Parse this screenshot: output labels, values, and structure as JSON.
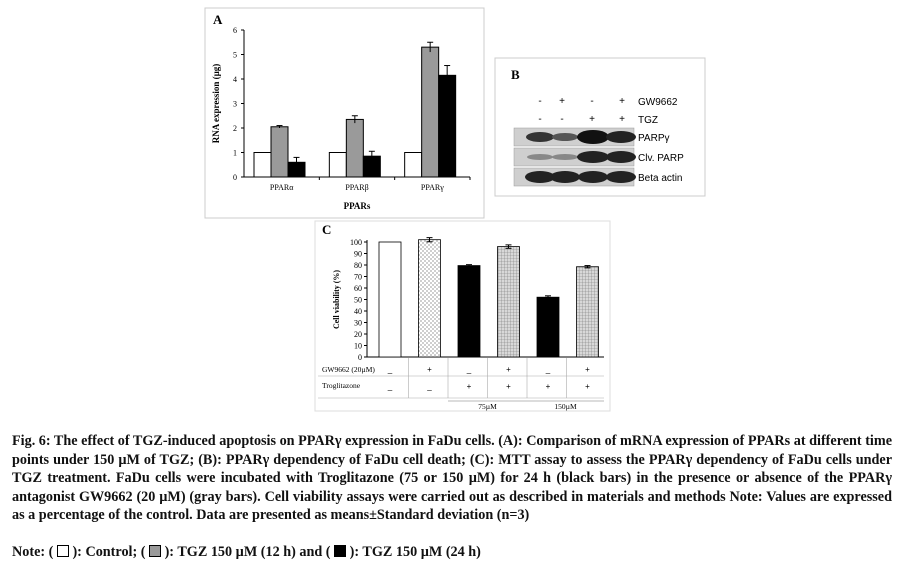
{
  "panel_labels": {
    "a": "A",
    "b": "B",
    "c": "C"
  },
  "chart_data": [
    {
      "type": "bar",
      "panel": "A",
      "title": "",
      "xlabel": "PPARs",
      "ylabel": "RNA expression (µg)",
      "ylim": [
        0,
        6
      ],
      "yticks": [
        "0",
        "1",
        "2",
        "3",
        "4",
        "5",
        "6"
      ],
      "categories": [
        "PPARα",
        "PPARβ",
        "PPARγ"
      ],
      "series": [
        {
          "name": "Control",
          "fill": "#ffffff",
          "values": [
            1.0,
            1.0,
            1.0
          ],
          "errors": [
            0,
            0,
            0
          ]
        },
        {
          "name": "TGZ 150 µM (12 h)",
          "fill": "#9a9a9a",
          "values": [
            2.05,
            2.35,
            5.3
          ],
          "errors": [
            0.05,
            0.15,
            0.2
          ]
        },
        {
          "name": "TGZ 150 µM (24 h)",
          "fill": "#000000",
          "values": [
            0.6,
            0.85,
            4.15
          ],
          "errors": [
            0.2,
            0.2,
            0.4
          ]
        }
      ]
    },
    {
      "type": "bar",
      "panel": "C",
      "title": "",
      "xlabel": "",
      "ylabel": "Cell viability (%)",
      "ylim": [
        0,
        100
      ],
      "yticks": [
        "0",
        "10",
        "20",
        "30",
        "40",
        "50",
        "60",
        "70",
        "80",
        "90",
        "100"
      ],
      "values": [
        100,
        102,
        79.5,
        96,
        52,
        78.5
      ],
      "errors": [
        0,
        1.8,
        0.8,
        1.5,
        1.2,
        1.0
      ],
      "fills": [
        "white",
        "dots",
        "black",
        "grid",
        "black",
        "grid"
      ],
      "row_labels": {
        "gw9662": "GW9662 (20µM)",
        "troglitazone": "Troglitazone"
      },
      "gw9662_signs": [
        "_",
        "+",
        "_",
        "+",
        "_",
        "+"
      ],
      "troglitazone_signs": [
        "_",
        "_",
        "+",
        "+",
        "+",
        "+"
      ],
      "dose_groups": [
        "75µM",
        "150µM"
      ]
    }
  ],
  "blot": {
    "gw9662_label": "GW9662",
    "tgz_label": "TGZ",
    "gw9662_signs": [
      "-",
      "+",
      "-",
      "+"
    ],
    "tgz_signs": [
      "-",
      "-",
      "+",
      "+"
    ],
    "bands": [
      "PARPγ",
      "Clv. PARP",
      "Beta actin"
    ]
  },
  "caption": {
    "text": "Fig. 6: The effect of TGZ-induced apoptosis on PPARγ expression in FaDu cells. (A): Comparison of mRNA expression of PPARs at different time points under 150 µM of TGZ; (B): PPARγ dependency of FaDu cell death; (C): MTT assay to assess the PPARγ dependency of FaDu cells under TGZ treatment. FaDu cells were incubated with Troglitazone (75 or 150 µM) for 24 h (black bars) in the presence or absence of the PPARγ antagonist GW9662 (20 µM) (gray bars). Cell viability assays were carried out as described in materials and methods Note: Values are expressed as a percentage of the control. Data are presented as means±Standard deviation (n=3)",
    "note_prefix": "Note: (",
    "note_control": "): Control; (",
    "note_12h": "): TGZ 150 µM (12 h) and (",
    "note_24h": "): TGZ 150 µM (24 h)"
  }
}
